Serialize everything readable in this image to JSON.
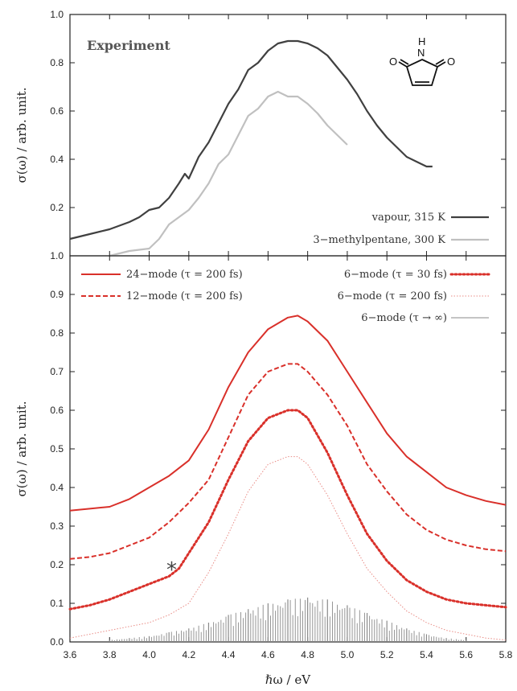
{
  "chart_data": [
    {
      "type": "line",
      "panel": "top",
      "title": "Experiment",
      "ylabel": "σ(ω) / arb. unit.",
      "xlabel": "",
      "xlim": [
        3.6,
        5.8
      ],
      "ylim": [
        0.0,
        1.0
      ],
      "yticks": [
        "0.2",
        "0.4",
        "0.6",
        "0.8",
        "1.0"
      ],
      "legend_position": "bottom-right",
      "series": [
        {
          "name": "vapour, 315 K",
          "color": "#404040",
          "style": "solid",
          "x": [
            3.6,
            3.7,
            3.8,
            3.9,
            3.95,
            4.0,
            4.05,
            4.1,
            4.15,
            4.18,
            4.2,
            4.25,
            4.3,
            4.35,
            4.4,
            4.45,
            4.5,
            4.55,
            4.6,
            4.65,
            4.7,
            4.75,
            4.8,
            4.85,
            4.9,
            4.95,
            5.0,
            5.05,
            5.1,
            5.15,
            5.2,
            5.25,
            5.3,
            5.35,
            5.4,
            5.43
          ],
          "y": [
            0.07,
            0.09,
            0.11,
            0.14,
            0.16,
            0.19,
            0.2,
            0.24,
            0.3,
            0.34,
            0.32,
            0.41,
            0.47,
            0.55,
            0.63,
            0.69,
            0.77,
            0.8,
            0.85,
            0.88,
            0.89,
            0.89,
            0.88,
            0.86,
            0.83,
            0.78,
            0.73,
            0.67,
            0.6,
            0.54,
            0.49,
            0.45,
            0.41,
            0.39,
            0.37,
            0.37
          ]
        },
        {
          "name": "3−methylpentane, 300 K",
          "color": "#c0c0c0",
          "style": "solid",
          "x": [
            3.8,
            3.9,
            3.95,
            4.0,
            4.05,
            4.1,
            4.15,
            4.2,
            4.25,
            4.3,
            4.35,
            4.4,
            4.45,
            4.5,
            4.55,
            4.6,
            4.65,
            4.7,
            4.75,
            4.8,
            4.85,
            4.9,
            4.95,
            5.0
          ],
          "y": [
            0.0,
            0.02,
            0.025,
            0.03,
            0.07,
            0.13,
            0.16,
            0.19,
            0.24,
            0.3,
            0.38,
            0.42,
            0.5,
            0.58,
            0.61,
            0.66,
            0.68,
            0.66,
            0.66,
            0.63,
            0.59,
            0.54,
            0.5,
            0.46
          ]
        }
      ]
    },
    {
      "type": "line",
      "panel": "bottom",
      "title": "",
      "ylabel": "σ(ω) / arb. unit.",
      "xlabel": "ℏω / eV",
      "xlim": [
        3.6,
        5.8
      ],
      "ylim": [
        0.0,
        1.0
      ],
      "xticks": [
        "3.6",
        "3.8",
        "4.0",
        "4.2",
        "4.4",
        "4.6",
        "4.8",
        "5.0",
        "5.2",
        "5.4",
        "5.6",
        "5.8"
      ],
      "yticks": [
        "0.0",
        "0.1",
        "0.2",
        "0.3",
        "0.4",
        "0.5",
        "0.6",
        "0.7",
        "0.8",
        "0.9",
        "1.0"
      ],
      "legend_position": "top",
      "annotations": [
        {
          "text": "*",
          "x": 4.11,
          "y": 0.21
        }
      ],
      "series": [
        {
          "name": "24−mode (τ = 200 fs)",
          "color": "#d9302a",
          "style": "solid",
          "x": [
            3.6,
            3.7,
            3.8,
            3.9,
            4.0,
            4.1,
            4.2,
            4.3,
            4.4,
            4.5,
            4.6,
            4.7,
            4.75,
            4.8,
            4.9,
            5.0,
            5.1,
            5.2,
            5.3,
            5.4,
            5.5,
            5.6,
            5.7,
            5.8
          ],
          "y": [
            0.34,
            0.345,
            0.35,
            0.37,
            0.4,
            0.43,
            0.47,
            0.55,
            0.66,
            0.75,
            0.81,
            0.84,
            0.845,
            0.83,
            0.78,
            0.7,
            0.62,
            0.54,
            0.48,
            0.44,
            0.4,
            0.38,
            0.365,
            0.355
          ]
        },
        {
          "name": "12−mode (τ = 200 fs)",
          "color": "#d9302a",
          "style": "dashed",
          "x": [
            3.6,
            3.7,
            3.8,
            3.9,
            4.0,
            4.1,
            4.2,
            4.3,
            4.4,
            4.5,
            4.6,
            4.7,
            4.75,
            4.8,
            4.9,
            5.0,
            5.1,
            5.2,
            5.3,
            5.4,
            5.5,
            5.6,
            5.7,
            5.8
          ],
          "y": [
            0.215,
            0.22,
            0.23,
            0.25,
            0.27,
            0.31,
            0.36,
            0.42,
            0.53,
            0.64,
            0.7,
            0.72,
            0.72,
            0.7,
            0.64,
            0.56,
            0.46,
            0.39,
            0.33,
            0.29,
            0.265,
            0.25,
            0.24,
            0.235
          ]
        },
        {
          "name": "6−mode (τ = 30 fs)",
          "color": "#d9302a",
          "style": "dotted-thick",
          "x": [
            3.6,
            3.7,
            3.8,
            3.9,
            4.0,
            4.05,
            4.1,
            4.15,
            4.2,
            4.3,
            4.4,
            4.5,
            4.6,
            4.7,
            4.75,
            4.8,
            4.9,
            5.0,
            5.1,
            5.2,
            5.3,
            5.4,
            5.5,
            5.6,
            5.7,
            5.8
          ],
          "y": [
            0.085,
            0.095,
            0.11,
            0.13,
            0.15,
            0.16,
            0.17,
            0.19,
            0.23,
            0.31,
            0.42,
            0.52,
            0.58,
            0.6,
            0.6,
            0.58,
            0.49,
            0.38,
            0.28,
            0.21,
            0.16,
            0.13,
            0.11,
            0.1,
            0.095,
            0.09
          ]
        },
        {
          "name": "6−mode (τ = 200 fs)",
          "color": "#e98c86",
          "style": "dotted-thin",
          "x": [
            3.6,
            3.7,
            3.8,
            3.9,
            4.0,
            4.1,
            4.2,
            4.3,
            4.4,
            4.5,
            4.6,
            4.7,
            4.75,
            4.8,
            4.9,
            5.0,
            5.1,
            5.2,
            5.3,
            5.4,
            5.5,
            5.6,
            5.7,
            5.8
          ],
          "y": [
            0.01,
            0.02,
            0.03,
            0.04,
            0.05,
            0.07,
            0.1,
            0.18,
            0.28,
            0.39,
            0.46,
            0.48,
            0.48,
            0.46,
            0.38,
            0.28,
            0.19,
            0.13,
            0.08,
            0.05,
            0.03,
            0.02,
            0.01,
            0.005
          ]
        },
        {
          "name": "6−mode (τ → ∞)",
          "color": "#8a8a8a",
          "style": "sticks",
          "x": [
            3.8,
            3.9,
            4.0,
            4.1,
            4.2,
            4.3,
            4.4,
            4.5,
            4.6,
            4.7,
            4.8,
            4.9,
            5.0,
            5.1,
            5.2,
            5.3,
            5.4,
            5.5,
            5.6
          ],
          "y": [
            0.005,
            0.01,
            0.015,
            0.025,
            0.035,
            0.05,
            0.07,
            0.085,
            0.1,
            0.11,
            0.115,
            0.11,
            0.095,
            0.075,
            0.055,
            0.035,
            0.02,
            0.01,
            0.005
          ]
        }
      ]
    }
  ]
}
